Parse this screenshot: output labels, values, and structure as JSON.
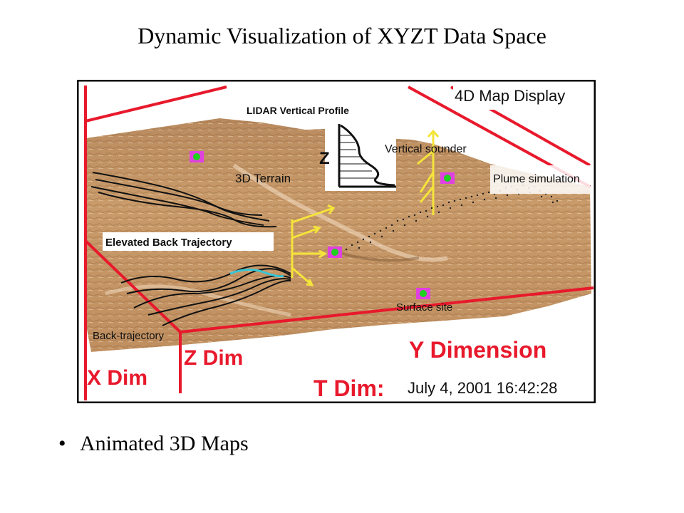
{
  "slide": {
    "title": "Dynamic Visualization of XYZT Data Space",
    "bullets": [
      "Animated 3D Maps"
    ]
  },
  "map": {
    "display_title": "4D Map Display",
    "lidar_label": "LIDAR Vertical Profile",
    "z_label": "Z",
    "terrain_label": "3D Terrain",
    "vertical_sounder_label": "Vertical sounder",
    "plume_label": "Plume simulation",
    "elevated_traj_label": "Elevated Back Trajectory",
    "surface_site_label": "Surface site",
    "back_traj_label": "Back-trajectory",
    "x_dim_label": "X Dim",
    "z_dim_label": "Z Dim",
    "y_dim_label": "Y Dimension",
    "t_dim_label": "T Dim:",
    "timestamp": "July 4, 2001 16:42:28"
  },
  "colors": {
    "terrain": "#c89a6a",
    "frame_red": "#e8192c",
    "vector_yellow": "#f5e43a",
    "site_magenta": "#e040e0",
    "site_green": "#1fd11f"
  }
}
